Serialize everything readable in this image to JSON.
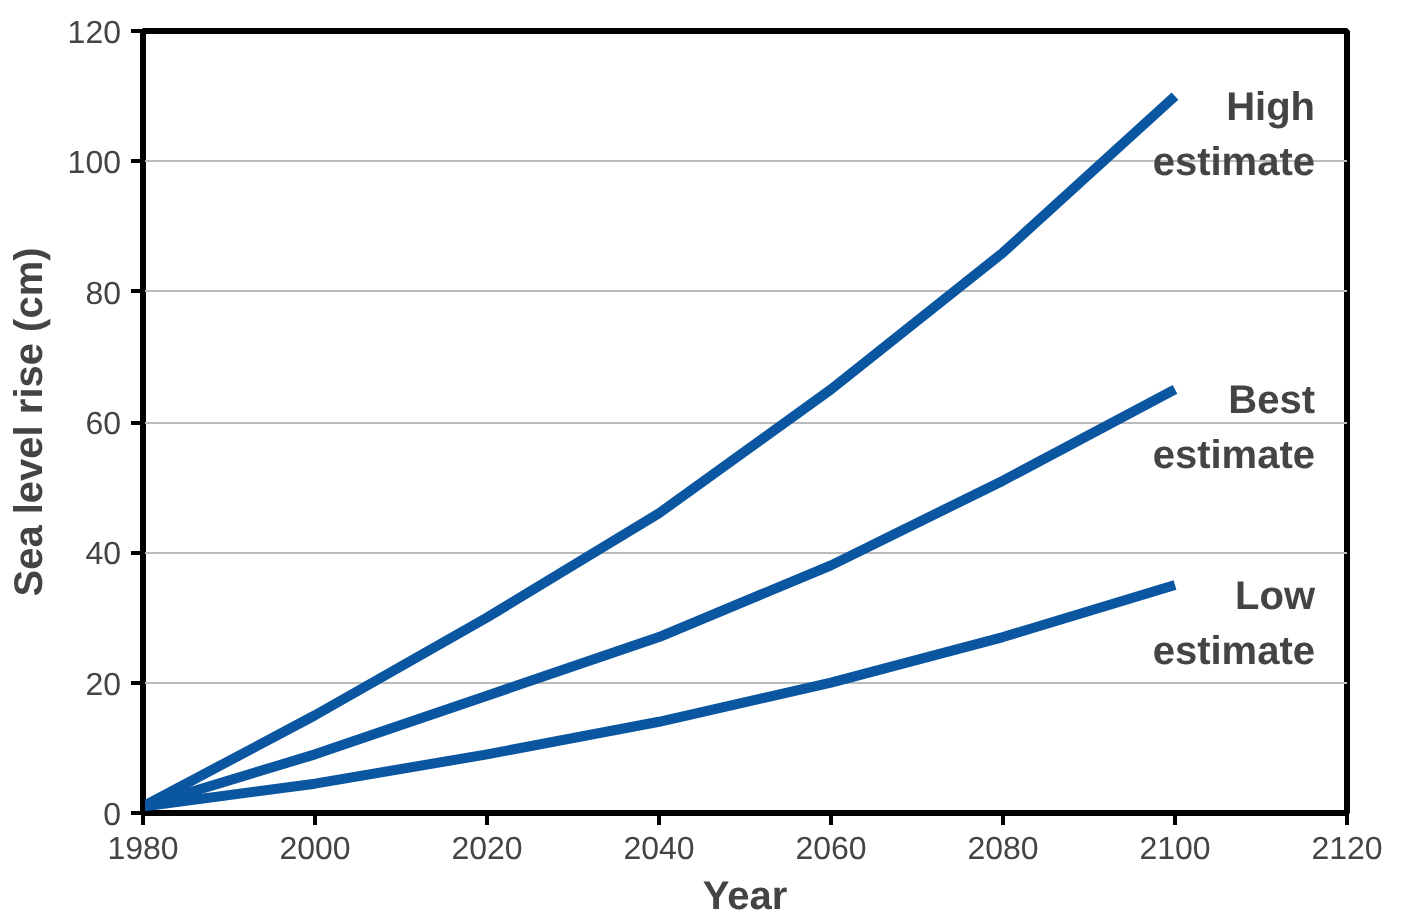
{
  "chart_data": {
    "type": "line",
    "xlabel": "Year",
    "ylabel": "Sea level rise (cm)",
    "x": [
      1980,
      2000,
      2020,
      2040,
      2060,
      2080,
      2100
    ],
    "series": [
      {
        "name": "High estimate",
        "color": "#0a56a0",
        "values": [
          1,
          15,
          30,
          46,
          65,
          86,
          110
        ]
      },
      {
        "name": "Best estimate",
        "color": "#0a56a0",
        "values": [
          1,
          9,
          18,
          27,
          38,
          51,
          65
        ]
      },
      {
        "name": "Low estimate",
        "color": "#0a56a0",
        "values": [
          1,
          4.5,
          9,
          14,
          20,
          27,
          35
        ]
      }
    ],
    "xlim": [
      1980,
      2120
    ],
    "xticks": [
      1980,
      2000,
      2020,
      2040,
      2060,
      2080,
      2100,
      2120
    ],
    "ylim": [
      0,
      120
    ],
    "yticks": [
      0,
      20,
      40,
      60,
      80,
      100,
      120
    ],
    "grid": "y",
    "legend": false,
    "marker": "none",
    "line_style": "solid"
  }
}
